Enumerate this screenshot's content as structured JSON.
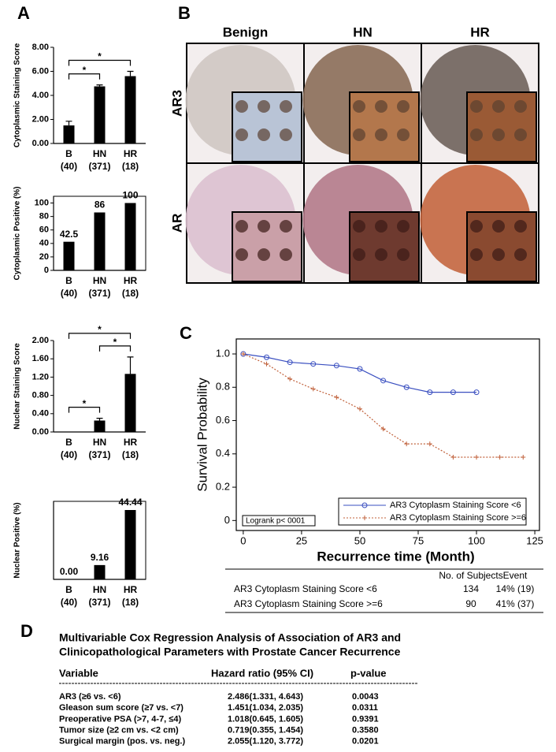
{
  "panel_labels": [
    "A",
    "B",
    "C",
    "D"
  ],
  "micrographs": {
    "columns": [
      "Benign",
      "HN",
      "HR"
    ],
    "rows": [
      "AR3",
      "AR"
    ]
  },
  "chart_data": [
    {
      "type": "bar",
      "y_label": "Cytoplasmic Staining Score",
      "categories": [
        "B",
        "HN",
        "HR"
      ],
      "category_counts": [
        "(40)",
        "(371)",
        "(18)"
      ],
      "values": [
        1.5,
        4.75,
        5.6
      ],
      "errors": [
        0.35,
        0.12,
        0.4
      ],
      "color": "#000000",
      "ylim": [
        0,
        8
      ],
      "yticks": [
        {
          "value": 0,
          "label": "0.00"
        },
        {
          "value": 2,
          "label": "2.00"
        },
        {
          "value": 4,
          "label": "4.00"
        },
        {
          "value": 6,
          "label": "6.00"
        },
        {
          "value": 8,
          "label": "8.00"
        }
      ],
      "significance": [
        {
          "between": [
            "B",
            "HN"
          ],
          "label": "*"
        },
        {
          "between": [
            "B",
            "HR"
          ],
          "label": "*"
        }
      ]
    },
    {
      "type": "bar",
      "y_label": "Cytoplasmic Positive (%)",
      "categories": [
        "B",
        "HN",
        "HR"
      ],
      "category_counts": [
        "(40)",
        "(371)",
        "(18)"
      ],
      "values": [
        42.5,
        86,
        100
      ],
      "color": "#000000",
      "ylim": [
        0,
        110
      ],
      "yticks": [
        0,
        20,
        40,
        60,
        80,
        100
      ]
    },
    {
      "type": "bar",
      "y_label": "Nuclear Staining Score",
      "categories": [
        "B",
        "HN",
        "HR"
      ],
      "category_counts": [
        "(40)",
        "(371)",
        "(18)"
      ],
      "values": [
        0,
        0.25,
        1.27
      ],
      "errors": [
        0,
        0.05,
        0.37
      ],
      "color": "#000000",
      "ylim": [
        0,
        2
      ],
      "yticks": [
        {
          "value": 0,
          "label": "0.00"
        },
        {
          "value": 0.4,
          "label": "0.40"
        },
        {
          "value": 0.8,
          "label": "0.80"
        },
        {
          "value": 1.2,
          "label": "1.20"
        },
        {
          "value": 1.6,
          "label": "1.60"
        },
        {
          "value": 2,
          "label": "2.00"
        }
      ],
      "significance": [
        {
          "between": [
            "B",
            "HN"
          ],
          "label": "*"
        },
        {
          "between": [
            "HN",
            "HR"
          ],
          "label": "*"
        },
        {
          "between": [
            "B",
            "HR"
          ],
          "label": "*"
        }
      ]
    },
    {
      "type": "bar",
      "y_label": "Nuclear Positive (%)",
      "categories": [
        "B",
        "HN",
        "HR"
      ],
      "category_counts": [
        "(40)",
        "(371)",
        "(18)"
      ],
      "values": [
        0,
        9.16,
        44.44
      ],
      "value_labels": [
        "0.00",
        "9.16",
        "44.44"
      ],
      "color": "#000000",
      "ylim": [
        0,
        50
      ]
    },
    {
      "type": "line",
      "x_label": "Recurrence time (Month)",
      "y_label": "Survival Probability",
      "xlim": [
        -3,
        127
      ],
      "xticks": [
        0,
        25,
        50,
        75,
        100,
        125
      ],
      "ylim": [
        -0.06,
        1.09
      ],
      "yticks": [
        0,
        0.2,
        0.4,
        0.6,
        0.8,
        {
          "value": 1,
          "label": "1.0"
        }
      ],
      "legend": "lower right",
      "annotation": "Logrank p< 0001",
      "series": [
        {
          "name": "AR3 Cytoplasm Staining Score <6",
          "color": "#3a4fc0",
          "marker": "circle",
          "x": [
            0,
            10,
            20,
            30,
            40,
            50,
            60,
            70,
            80,
            90,
            100
          ],
          "values": [
            1,
            0.98,
            0.95,
            0.94,
            0.93,
            0.91,
            0.84,
            0.8,
            0.77,
            0.77,
            0.77
          ]
        },
        {
          "name": "AR3 Cytoplasm Staining Score >=6",
          "color": "#c0603a",
          "marker": "plus",
          "x": [
            0,
            10,
            20,
            30,
            40,
            50,
            60,
            70,
            80,
            90,
            100,
            110,
            120
          ],
          "values": [
            1,
            0.94,
            0.85,
            0.79,
            0.74,
            0.67,
            0.55,
            0.46,
            0.46,
            0.38,
            0.38,
            0.38,
            0.38
          ]
        }
      ]
    }
  ],
  "survival_table": {
    "columns": [
      "No. of Subjects",
      "Event"
    ],
    "rows": [
      [
        "AR3 Cytoplasm Staining Score <6",
        "134",
        "14% (19)"
      ],
      [
        "AR3 Cytoplasm Staining Score >=6",
        "90",
        "41% (37)"
      ]
    ]
  },
  "cox_table": {
    "title": [
      "Multivariable Cox Regression Analysis of Association of AR3 and",
      "Clinicopathological Parameters with Prostate Cancer Recurrence"
    ],
    "columns": [
      "Variable",
      "Hazard ratio (95% CI)",
      "p-value"
    ],
    "rows": [
      [
        "AR3 (≥6 vs. <6)",
        "2.486(1.331, 4.643)",
        "0.0043"
      ],
      [
        "Gleason sum score (≥7 vs. <7)",
        "1.451(1.034, 2.035)",
        "0.0311"
      ],
      [
        "Preoperative PSA (>7, 4-7, ≤4)",
        "1.018(0.645, 1.605)",
        "0.9391"
      ],
      [
        "Tumor size (≥2 cm vs. <2 cm)",
        "0.719(0.355, 1.454)",
        "0.3580"
      ],
      [
        "Surgical margin (pos. vs. neg.)",
        "2.055(1.120, 3.772)",
        "0.0201"
      ]
    ]
  }
}
